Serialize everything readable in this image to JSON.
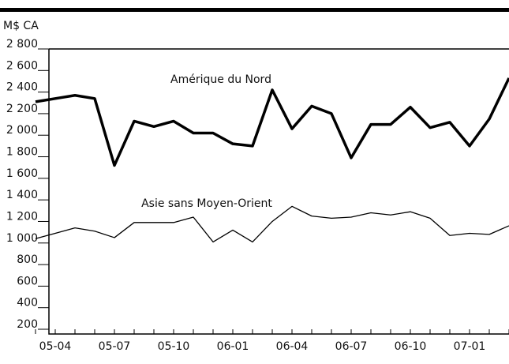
{
  "chart_data": {
    "type": "line",
    "y_label": "M$ CA",
    "categories": [
      null,
      "05-04",
      null,
      null,
      "05-07",
      null,
      null,
      "05-10",
      null,
      null,
      "06-01",
      null,
      null,
      "06-04",
      null,
      null,
      "06-07",
      null,
      null,
      "06-10",
      null,
      null,
      "07-01",
      null,
      null
    ],
    "series": [
      {
        "name": "Amérique du Nord",
        "color": "#000000",
        "width": 3.5,
        "values": [
          2310,
          2340,
          2370,
          2340,
          1720,
          2130,
          2080,
          2130,
          2020,
          2020,
          1920,
          1900,
          2420,
          2060,
          2270,
          2200,
          1790,
          2100,
          2100,
          2260,
          2070,
          2120,
          1900,
          2150,
          2530
        ]
      },
      {
        "name": "Asie sans Moyen-Orient",
        "color": "#000000",
        "width": 1.3,
        "values": [
          1040,
          1090,
          1140,
          1110,
          1050,
          1190,
          1190,
          1190,
          1240,
          1010,
          1120,
          1010,
          1200,
          1340,
          1250,
          1230,
          1240,
          1280,
          1260,
          1290,
          1230,
          1070,
          1090,
          1080,
          1160
        ]
      }
    ],
    "ylim": [
      200,
      2800
    ],
    "yticks": [
      200,
      400,
      600,
      800,
      {
        "value": 1000,
        "label": "1 000"
      },
      {
        "value": 1200,
        "label": "1 200"
      },
      {
        "value": 1400,
        "label": "1 400"
      },
      {
        "value": 1600,
        "label": "1 600"
      },
      {
        "value": 1800,
        "label": "1 800"
      },
      {
        "value": 2000,
        "label": "2 000"
      },
      {
        "value": 2200,
        "label": "2 200"
      },
      {
        "value": 2400,
        "label": "2 400"
      },
      {
        "value": 2600,
        "label": "2 600"
      },
      {
        "value": 2800,
        "label": "2 800"
      }
    ]
  }
}
